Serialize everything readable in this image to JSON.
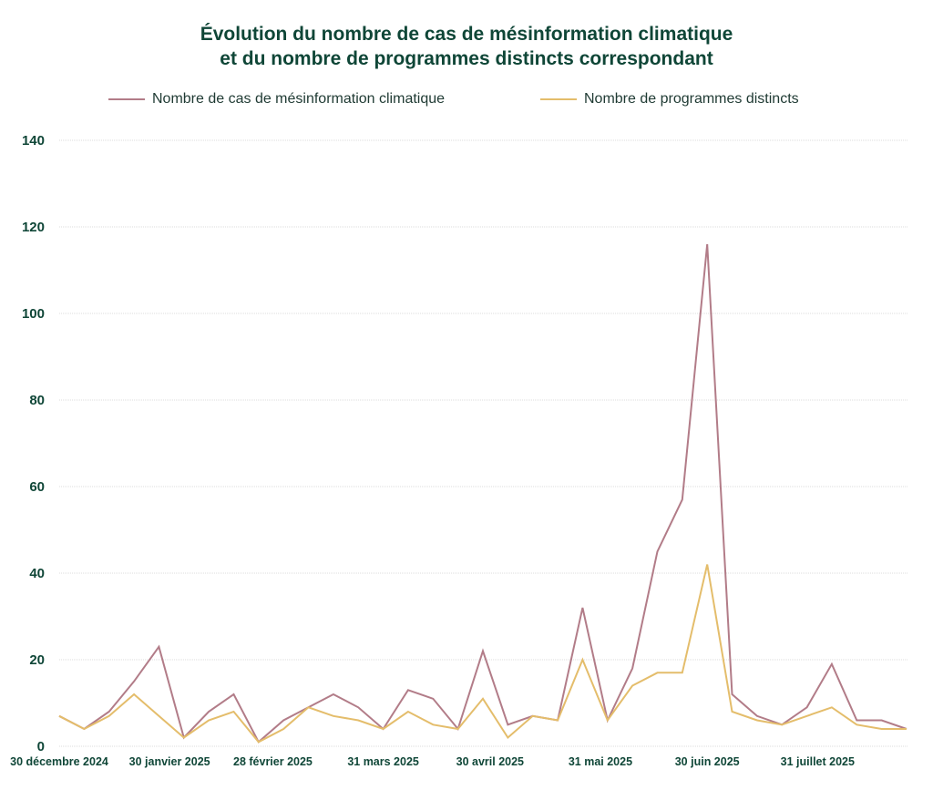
{
  "chart_data": {
    "type": "line",
    "title": [
      "Évolution du nombre de cas de mésinformation climatique",
      "et du nombre de programmes distincts correspondant"
    ],
    "xlabel": "",
    "ylabel": "",
    "ylim": [
      0,
      140
    ],
    "yticks": [
      0,
      20,
      40,
      60,
      80,
      100,
      120,
      140
    ],
    "x_unit": "weeks from 30 décembre 2024",
    "x": [
      0,
      1,
      2,
      3,
      4,
      5,
      6,
      7,
      8,
      9,
      10,
      11,
      12,
      13,
      14,
      15,
      16,
      17,
      18,
      19,
      20,
      21,
      22,
      23,
      24,
      25,
      26,
      27,
      28,
      29,
      30,
      31,
      32,
      33,
      34
    ],
    "xticks": [
      {
        "label": "30 décembre 2024",
        "day": 0
      },
      {
        "label": "30 janvier 2025",
        "day": 31
      },
      {
        "label": "28 février 2025",
        "day": 60
      },
      {
        "label": "31 mars 2025",
        "day": 91
      },
      {
        "label": "30 avril 2025",
        "day": 121
      },
      {
        "label": "31 mai 2025",
        "day": 152
      },
      {
        "label": "30 juin 2025",
        "day": 182
      },
      {
        "label": "31 juillet 2025",
        "day": 213
      }
    ],
    "grid": true,
    "legend_position": "top",
    "series": [
      {
        "name": "Nombre de cas de mésinformation climatique",
        "color": "#b27c88",
        "values": [
          7,
          4,
          8,
          15,
          23,
          2,
          8,
          12,
          1,
          6,
          9,
          12,
          9,
          4,
          13,
          11,
          4,
          22,
          5,
          7,
          6,
          32,
          6,
          18,
          45,
          57,
          116,
          12,
          7,
          5,
          9,
          19,
          6,
          6,
          4
        ]
      },
      {
        "name": "Nombre de programmes distincts",
        "color": "#e4bd6b",
        "values": [
          7,
          4,
          7,
          12,
          7,
          2,
          6,
          8,
          1,
          4,
          9,
          7,
          6,
          4,
          8,
          5,
          4,
          11,
          2,
          7,
          6,
          20,
          6,
          14,
          17,
          17,
          42,
          8,
          6,
          5,
          7,
          9,
          5,
          4,
          4
        ]
      }
    ]
  }
}
